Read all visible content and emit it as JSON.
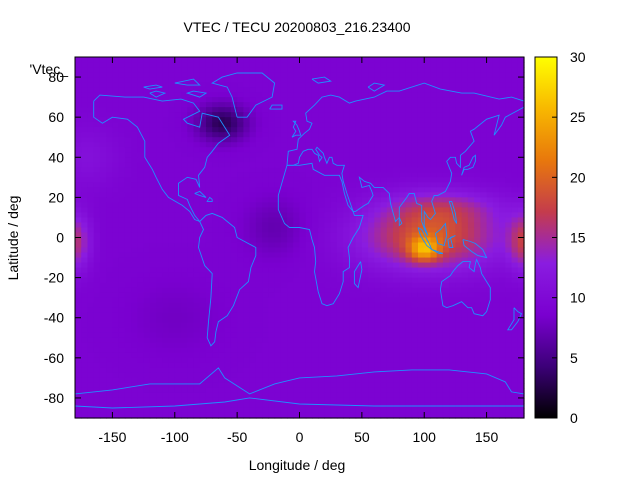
{
  "chart_data": {
    "type": "heatmap",
    "title": "VTEC / TECU 20200803_216.23400",
    "xlabel": "Longitude / deg",
    "ylabel": "Latitude / deg",
    "legend_key": "'Vtec_",
    "xlim": [
      -180,
      180
    ],
    "ylim": [
      -90,
      90
    ],
    "x_ticks": [
      -150,
      -100,
      -50,
      0,
      50,
      100,
      150
    ],
    "y_ticks": [
      -80,
      -60,
      -40,
      -20,
      0,
      20,
      40,
      60,
      80
    ],
    "colorbar": {
      "range": [
        0,
        30
      ],
      "ticks": [
        0,
        5,
        10,
        15,
        20,
        25,
        30
      ],
      "palette": [
        "#000000",
        "#3c0078",
        "#7a00d0",
        "#8a1ce0",
        "#c43c4c",
        "#e8780c",
        "#f8b800",
        "#ffff00"
      ]
    },
    "overlay": "coastlines",
    "background_tecu": 9,
    "features": [
      {
        "lon": 105,
        "lat": 0,
        "sigma_lon": 55,
        "sigma_lat": 16,
        "tecu": 10
      },
      {
        "lon": 115,
        "lat": 15,
        "sigma_lon": 45,
        "sigma_lat": 9,
        "tecu": 4
      },
      {
        "lon": 100,
        "lat": -6,
        "sigma_lon": 12,
        "sigma_lat": 6,
        "tecu": 9
      },
      {
        "lon": 180,
        "lat": -2,
        "sigma_lon": 12,
        "sigma_lat": 14,
        "tecu": 7
      },
      {
        "lon": -180,
        "lat": -2,
        "sigma_lon": 12,
        "sigma_lat": 14,
        "tecu": 7
      },
      {
        "lon": -62,
        "lat": 57,
        "sigma_lon": 20,
        "sigma_lat": 9,
        "tecu": -6
      },
      {
        "lon": -170,
        "lat": 40,
        "sigma_lon": 25,
        "sigma_lat": 15,
        "tecu": 2
      },
      {
        "lon": -20,
        "lat": 5,
        "sigma_lon": 25,
        "sigma_lat": 15,
        "tecu": -2
      },
      {
        "lon": -100,
        "lat": -40,
        "sigma_lon": 40,
        "sigma_lat": 20,
        "tecu": -1
      }
    ],
    "colors": {
      "coastline": "#1e90ff",
      "frame": "#000000"
    }
  }
}
